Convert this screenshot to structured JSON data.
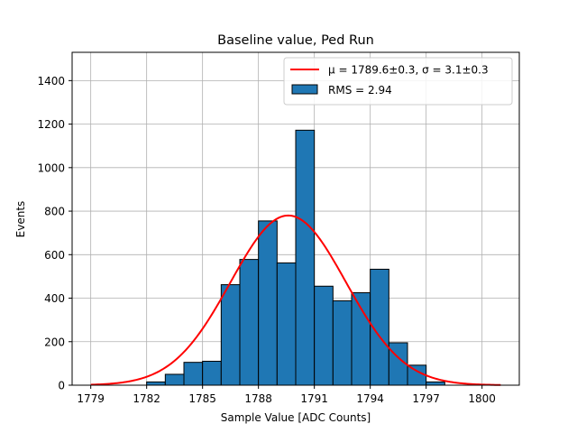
{
  "chart_data": {
    "type": "bar",
    "title": "Baseline value, Ped Run",
    "xlabel": "Sample Value [ADC Counts]",
    "ylabel": "Events",
    "xlim": [
      1778,
      1802
    ],
    "ylim": [
      0,
      1530
    ],
    "xticks": [
      1779,
      1782,
      1785,
      1788,
      1791,
      1794,
      1797,
      1800
    ],
    "yticks": [
      0,
      200,
      400,
      600,
      800,
      1000,
      1200,
      1400
    ],
    "grid": true,
    "legend_position": "top-right",
    "histogram": {
      "bin_edges": [
        1782,
        1783,
        1784,
        1785,
        1786,
        1787,
        1788,
        1789,
        1790,
        1791,
        1792,
        1793,
        1794,
        1795,
        1796,
        1797,
        1798
      ],
      "counts": [
        15,
        50,
        105,
        110,
        462,
        578,
        755,
        562,
        1172,
        455,
        388,
        425,
        533,
        195,
        92,
        15
      ],
      "color": "#1f77b4",
      "edge_color": "#000000"
    },
    "fit": {
      "type": "gaussian",
      "mu": 1789.6,
      "sigma": 3.1,
      "amplitude": 780,
      "x_range": [
        1779,
        1801
      ],
      "color": "#ff0000"
    },
    "legend": [
      {
        "label": "μ = 1789.6±0.3, σ = 3.1±0.3",
        "kind": "line",
        "color": "#ff0000"
      },
      {
        "label": "RMS = 2.94",
        "kind": "patch",
        "color": "#1f77b4"
      }
    ]
  }
}
